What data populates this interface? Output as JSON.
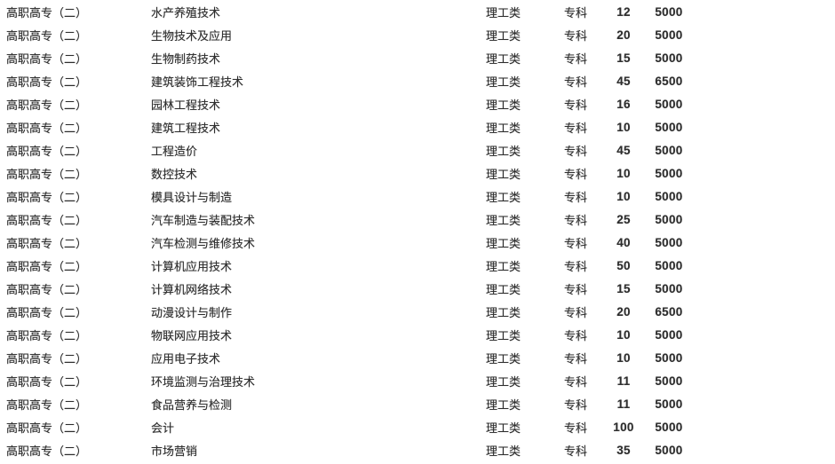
{
  "document": {
    "type": "enrollment-plan-table",
    "colors": {
      "text": "#2e2e2e",
      "background": "#ffffff"
    }
  },
  "table": {
    "columns": [
      "batch",
      "major",
      "category",
      "level",
      "quota",
      "tuition"
    ],
    "rows": [
      {
        "batch": "高职高专（二）",
        "major": "水产养殖技术",
        "category": "理工类",
        "level": "专科",
        "quota": "12",
        "tuition": "5000"
      },
      {
        "batch": "高职高专（二）",
        "major": "生物技术及应用",
        "category": "理工类",
        "level": "专科",
        "quota": "20",
        "tuition": "5000"
      },
      {
        "batch": "高职高专（二）",
        "major": "生物制药技术",
        "category": "理工类",
        "level": "专科",
        "quota": "15",
        "tuition": "5000"
      },
      {
        "batch": "高职高专（二）",
        "major": "建筑装饰工程技术",
        "category": "理工类",
        "level": "专科",
        "quota": "45",
        "tuition": "6500"
      },
      {
        "batch": "高职高专（二）",
        "major": "园林工程技术",
        "category": "理工类",
        "level": "专科",
        "quota": "16",
        "tuition": "5000"
      },
      {
        "batch": "高职高专（二）",
        "major": "建筑工程技术",
        "category": "理工类",
        "level": "专科",
        "quota": "10",
        "tuition": "5000"
      },
      {
        "batch": "高职高专（二）",
        "major": "工程造价",
        "category": "理工类",
        "level": "专科",
        "quota": "45",
        "tuition": "5000"
      },
      {
        "batch": "高职高专（二）",
        "major": "数控技术",
        "category": "理工类",
        "level": "专科",
        "quota": "10",
        "tuition": "5000"
      },
      {
        "batch": "高职高专（二）",
        "major": "模具设计与制造",
        "category": "理工类",
        "level": "专科",
        "quota": "10",
        "tuition": "5000"
      },
      {
        "batch": "高职高专（二）",
        "major": "汽车制造与装配技术",
        "category": "理工类",
        "level": "专科",
        "quota": "25",
        "tuition": "5000"
      },
      {
        "batch": "高职高专（二）",
        "major": "汽车检测与维修技术",
        "category": "理工类",
        "level": "专科",
        "quota": "40",
        "tuition": "5000"
      },
      {
        "batch": "高职高专（二）",
        "major": "计算机应用技术",
        "category": "理工类",
        "level": "专科",
        "quota": "50",
        "tuition": "5000"
      },
      {
        "batch": "高职高专（二）",
        "major": "计算机网络技术",
        "category": "理工类",
        "level": "专科",
        "quota": "15",
        "tuition": "5000"
      },
      {
        "batch": "高职高专（二）",
        "major": "动漫设计与制作",
        "category": "理工类",
        "level": "专科",
        "quota": "20",
        "tuition": "6500"
      },
      {
        "batch": "高职高专（二）",
        "major": "物联网应用技术",
        "category": "理工类",
        "level": "专科",
        "quota": "10",
        "tuition": "5000"
      },
      {
        "batch": "高职高专（二）",
        "major": "应用电子技术",
        "category": "理工类",
        "level": "专科",
        "quota": "10",
        "tuition": "5000"
      },
      {
        "batch": "高职高专（二）",
        "major": "环境监测与治理技术",
        "category": "理工类",
        "level": "专科",
        "quota": "11",
        "tuition": "5000"
      },
      {
        "batch": "高职高专（二）",
        "major": "食品营养与检测",
        "category": "理工类",
        "level": "专科",
        "quota": "11",
        "tuition": "5000"
      },
      {
        "batch": "高职高专（二）",
        "major": "会计",
        "category": "理工类",
        "level": "专科",
        "quota": "100",
        "tuition": "5000"
      },
      {
        "batch": "高职高专（二）",
        "major": "市场营销",
        "category": "理工类",
        "level": "专科",
        "quota": "35",
        "tuition": "5000"
      }
    ]
  }
}
